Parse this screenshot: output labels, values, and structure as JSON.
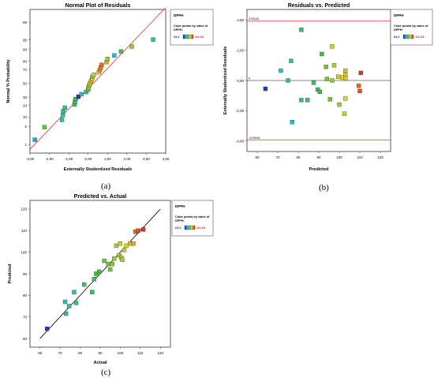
{
  "captions": [
    "(a)",
    "(b)",
    "(c)"
  ],
  "legend": {
    "name": "DPPH",
    "line1": "Color points by value of",
    "line2": "DPPH:",
    "min_label": "63,3",
    "max_label": "111,63"
  },
  "colors": {
    "low": "#1c1cc8",
    "mid": "#3fbf3f",
    "high": "#d41f1f",
    "ref_line": "#e03030",
    "fit_line": "#000000"
  },
  "chart_data": [
    {
      "type": "scatter",
      "title": "Normal Plot of Residuals",
      "xlabel": "Externally Studentized Residuals",
      "ylabel": "Normal % Probability",
      "xlim": [
        -3.0,
        4.0
      ],
      "x_ticks": [
        "-3,00",
        "-2,00",
        "-1,00",
        "0,00",
        "1,00",
        "2,00",
        "3,00",
        "4,00"
      ],
      "y_ticks": [
        "1",
        "5",
        "10",
        "20",
        "30",
        "50",
        "70",
        "80",
        "90",
        "95",
        "99"
      ],
      "y_scale": "normal-probability",
      "ref_line": {
        "from": [
          -3.0,
          0.6
        ],
        "to": [
          4.0,
          99.8
        ]
      },
      "points": [
        {
          "x": -2.75,
          "y": 1.6,
          "c": 0.25
        },
        {
          "x": -2.25,
          "y": 4.8,
          "c": 0.55
        },
        {
          "x": -1.35,
          "y": 8.2,
          "c": 0.35
        },
        {
          "x": -1.3,
          "y": 11.3,
          "c": 0.35
        },
        {
          "x": -1.28,
          "y": 14.5,
          "c": 0.4
        },
        {
          "x": -1.2,
          "y": 17.7,
          "c": 0.4
        },
        {
          "x": -0.7,
          "y": 21,
          "c": 0.45
        },
        {
          "x": -0.68,
          "y": 24.2,
          "c": 0.45
        },
        {
          "x": -0.65,
          "y": 27.4,
          "c": 0.5
        },
        {
          "x": -0.5,
          "y": 30.6,
          "c": 0.05
        },
        {
          "x": -0.35,
          "y": 33.9,
          "c": 0.3
        },
        {
          "x": -0.1,
          "y": 37.1,
          "c": 0.4
        },
        {
          "x": 0.0,
          "y": 40.3,
          "c": 0.55
        },
        {
          "x": 0.02,
          "y": 43.5,
          "c": 0.6
        },
        {
          "x": 0.05,
          "y": 46.8,
          "c": 0.6
        },
        {
          "x": 0.1,
          "y": 50,
          "c": 0.65
        },
        {
          "x": 0.15,
          "y": 53.2,
          "c": 0.75
        },
        {
          "x": 0.2,
          "y": 56.5,
          "c": 0.7
        },
        {
          "x": 0.22,
          "y": 59.7,
          "c": 0.6
        },
        {
          "x": 0.3,
          "y": 62.9,
          "c": 0.65
        },
        {
          "x": 0.55,
          "y": 66.1,
          "c": 0.7
        },
        {
          "x": 0.6,
          "y": 69.4,
          "c": 0.8
        },
        {
          "x": 0.65,
          "y": 72.6,
          "c": 0.82
        },
        {
          "x": 0.7,
          "y": 75.8,
          "c": 0.85
        },
        {
          "x": 0.95,
          "y": 79,
          "c": 0.75
        },
        {
          "x": 1.0,
          "y": 82.3,
          "c": 0.6
        },
        {
          "x": 1.35,
          "y": 85.5,
          "c": 0.3
        },
        {
          "x": 1.7,
          "y": 88.7,
          "c": 0.45
        },
        {
          "x": 2.25,
          "y": 91.9,
          "c": 0.6
        },
        {
          "x": 3.35,
          "y": 95.2,
          "c": 0.4
        }
      ]
    },
    {
      "type": "scatter",
      "title": "Residuals vs. Predicted",
      "xlabel": "Predicted",
      "ylabel": "Externally Studentized Residuals",
      "xlim": [
        55,
        125
      ],
      "ylim": [
        -4.7,
        4.7
      ],
      "x_ticks": [
        "60",
        "70",
        "80",
        "90",
        "100",
        "110",
        "120"
      ],
      "y_ticks": [
        "-4,00",
        "-2,00",
        "0,00",
        "2,00",
        "4,00"
      ],
      "limit_labels": {
        "upper": "3,93041",
        "lower": "-3,93041",
        "zero": "0"
      },
      "limits": [
        3.93041,
        -3.93041
      ],
      "points": [
        {
          "x": 64,
          "y": -0.55,
          "c": 0.05
        },
        {
          "x": 71.5,
          "y": 0.65,
          "c": 0.3
        },
        {
          "x": 75,
          "y": 0.0,
          "c": 0.35
        },
        {
          "x": 76.5,
          "y": 1.3,
          "c": 0.35
        },
        {
          "x": 77,
          "y": -2.75,
          "c": 0.3
        },
        {
          "x": 81.5,
          "y": 3.35,
          "c": 0.45
        },
        {
          "x": 81.5,
          "y": -1.3,
          "c": 0.4
        },
        {
          "x": 84.5,
          "y": -1.3,
          "c": 0.4
        },
        {
          "x": 87.5,
          "y": -0.15,
          "c": 0.45
        },
        {
          "x": 89.5,
          "y": -0.6,
          "c": 0.45
        },
        {
          "x": 90.5,
          "y": -0.75,
          "c": 0.5
        },
        {
          "x": 91.5,
          "y": 1.75,
          "c": 0.5
        },
        {
          "x": 93.5,
          "y": 0.9,
          "c": 0.55
        },
        {
          "x": 94,
          "y": 0.1,
          "c": 0.55
        },
        {
          "x": 95.5,
          "y": -1.25,
          "c": 0.55
        },
        {
          "x": 96.5,
          "y": 2.25,
          "c": 0.65
        },
        {
          "x": 96.5,
          "y": 0.0,
          "c": 0.6
        },
        {
          "x": 97.5,
          "y": 1.0,
          "c": 0.62
        },
        {
          "x": 99.5,
          "y": 0.25,
          "c": 0.65
        },
        {
          "x": 100,
          "y": -1.6,
          "c": 0.6
        },
        {
          "x": 101.5,
          "y": 0.2,
          "c": 0.68
        },
        {
          "x": 103,
          "y": 0.65,
          "c": 0.72
        },
        {
          "x": 103,
          "y": 0.35,
          "c": 0.7
        },
        {
          "x": 103,
          "y": 0.15,
          "c": 0.7
        },
        {
          "x": 103,
          "y": -1.2,
          "c": 0.68
        },
        {
          "x": 102.5,
          "y": -2.2,
          "c": 0.65
        },
        {
          "x": 109.5,
          "y": -0.35,
          "c": 0.85
        },
        {
          "x": 110,
          "y": -0.7,
          "c": 0.9
        },
        {
          "x": 110.5,
          "y": 0.5,
          "c": 0.95
        }
      ]
    },
    {
      "type": "scatter",
      "title": "Predicted vs. Actual",
      "xlabel": "Actual",
      "ylabel": "Predicted",
      "xlim": [
        55,
        125
      ],
      "ylim": [
        56,
        124
      ],
      "x_ticks": [
        "60",
        "70",
        "80",
        "90",
        "100",
        "110",
        "120"
      ],
      "y_ticks": [
        "60",
        "70",
        "80",
        "90",
        "100",
        "110",
        "120"
      ],
      "fit_line": {
        "from": [
          60,
          60
        ],
        "to": [
          120,
          120
        ]
      },
      "points": [
        {
          "x": 63.5,
          "y": 64.5,
          "c": 0.05
        },
        {
          "x": 72.5,
          "y": 77,
          "c": 0.35
        },
        {
          "x": 73,
          "y": 71.5,
          "c": 0.35
        },
        {
          "x": 74.5,
          "y": 75,
          "c": 0.35
        },
        {
          "x": 77,
          "y": 81.5,
          "c": 0.4
        },
        {
          "x": 78,
          "y": 76.5,
          "c": 0.4
        },
        {
          "x": 82,
          "y": 85,
          "c": 0.45
        },
        {
          "x": 86,
          "y": 81.5,
          "c": 0.45
        },
        {
          "x": 87,
          "y": 87.5,
          "c": 0.45
        },
        {
          "x": 88,
          "y": 90,
          "c": 0.5
        },
        {
          "x": 89.5,
          "y": 91,
          "c": 0.5
        },
        {
          "x": 92,
          "y": 96,
          "c": 0.55
        },
        {
          "x": 94,
          "y": 94.5,
          "c": 0.55
        },
        {
          "x": 95,
          "y": 92,
          "c": 0.55
        },
        {
          "x": 96,
          "y": 94.5,
          "c": 0.58
        },
        {
          "x": 97,
          "y": 97,
          "c": 0.6
        },
        {
          "x": 98,
          "y": 103,
          "c": 0.62
        },
        {
          "x": 99.5,
          "y": 98.5,
          "c": 0.62
        },
        {
          "x": 100,
          "y": 104,
          "c": 0.65
        },
        {
          "x": 100.5,
          "y": 97.5,
          "c": 0.62
        },
        {
          "x": 101,
          "y": 96.5,
          "c": 0.62
        },
        {
          "x": 102,
          "y": 101,
          "c": 0.65
        },
        {
          "x": 103,
          "y": 103,
          "c": 0.68
        },
        {
          "x": 105,
          "y": 104,
          "c": 0.72
        },
        {
          "x": 106.5,
          "y": 104,
          "c": 0.75
        },
        {
          "x": 107.5,
          "y": 109.5,
          "c": 0.85
        },
        {
          "x": 109,
          "y": 110,
          "c": 0.9
        },
        {
          "x": 111.5,
          "y": 110.5,
          "c": 0.95
        }
      ]
    }
  ]
}
